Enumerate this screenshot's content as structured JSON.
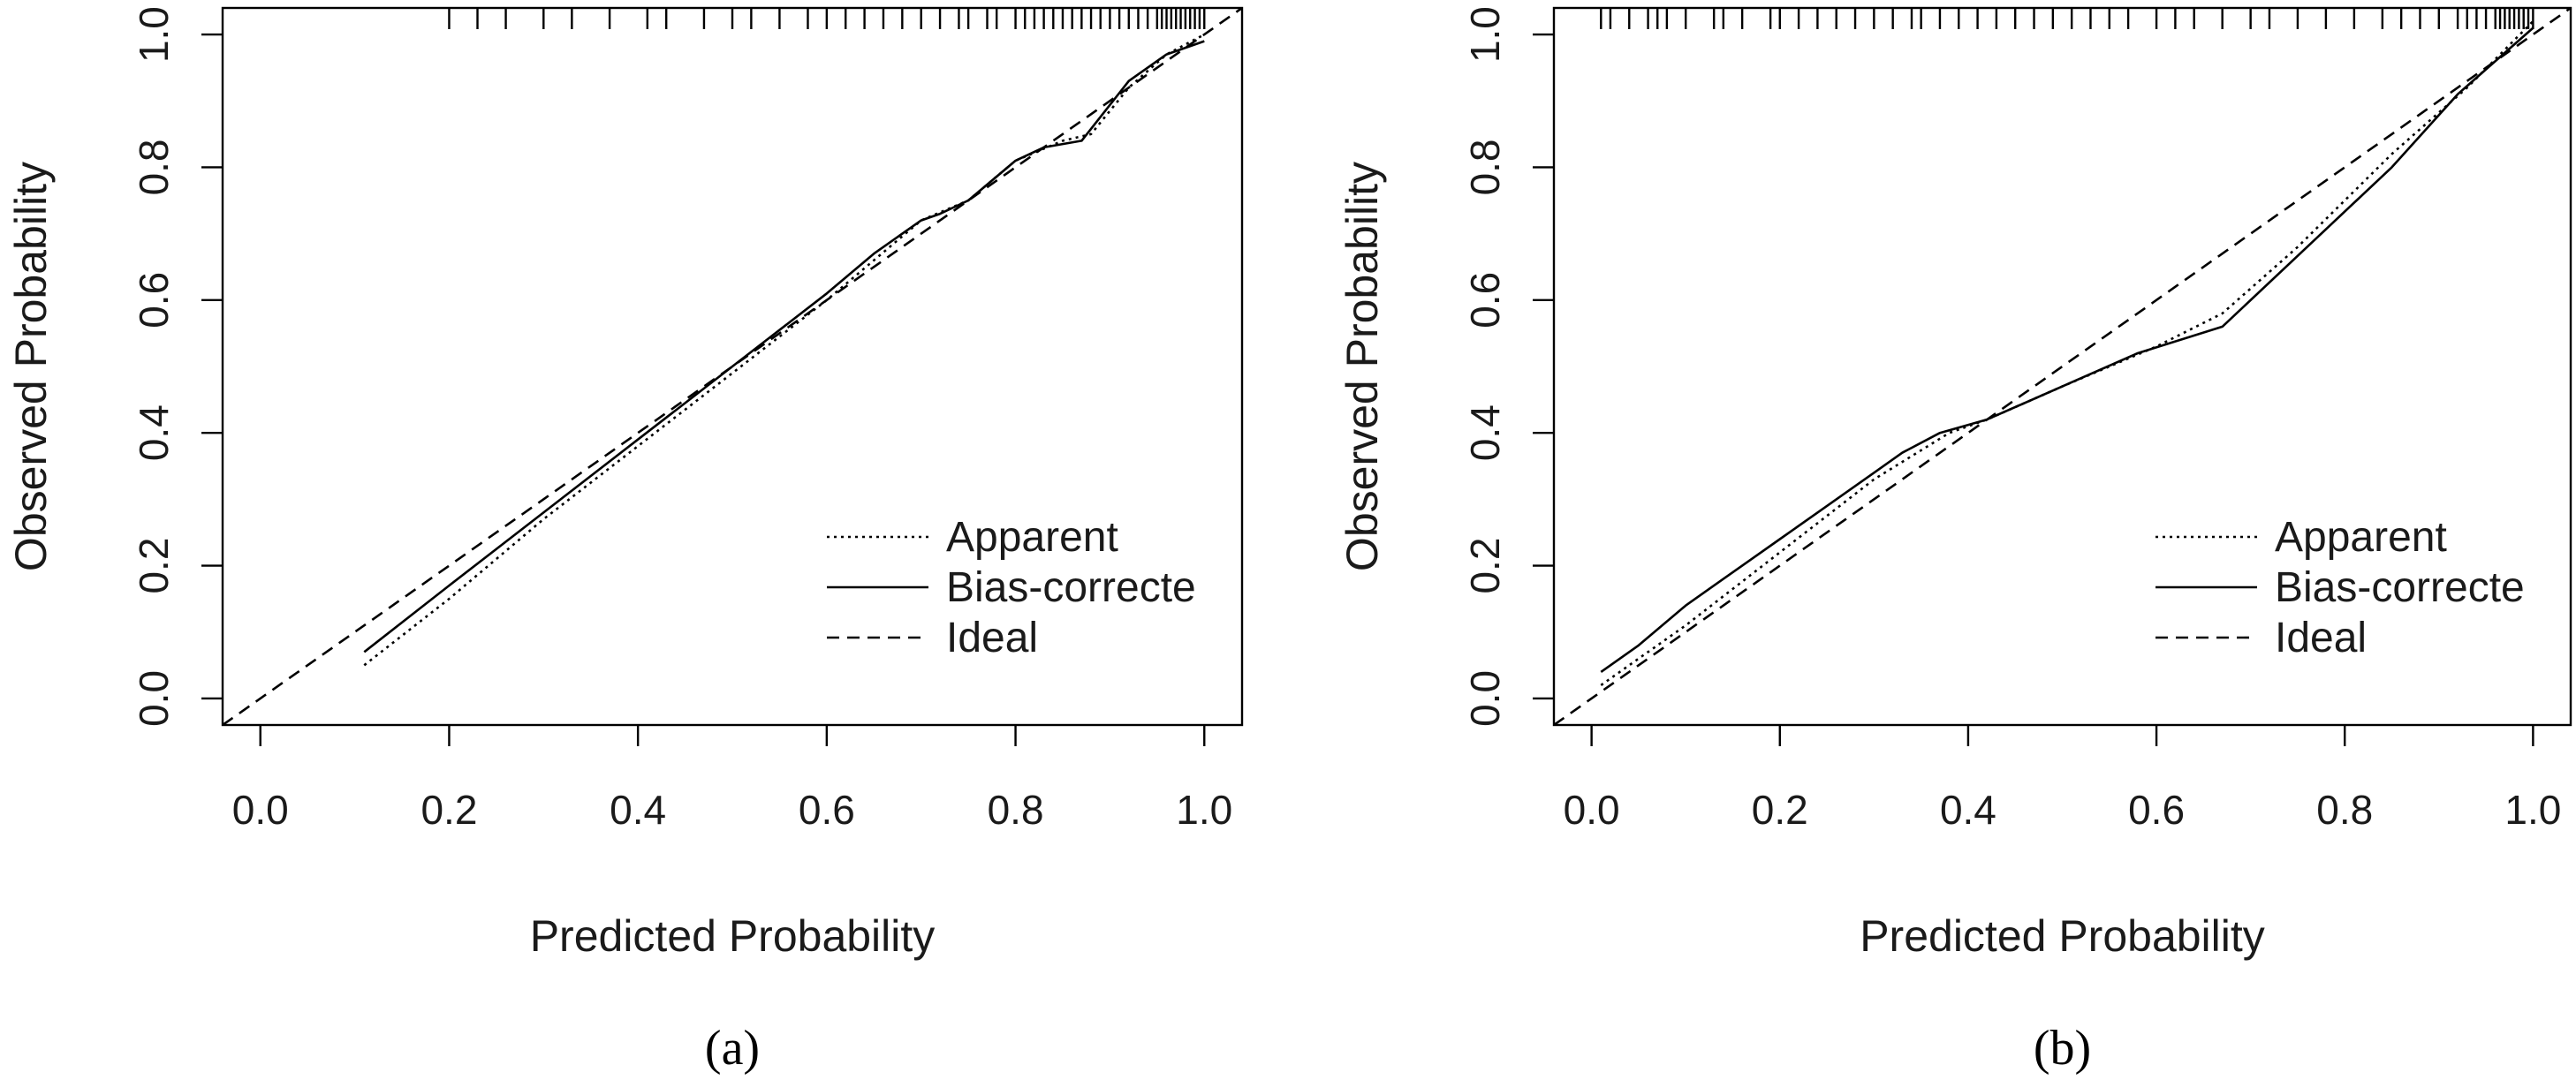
{
  "chart_data": [
    {
      "type": "line",
      "panel_label": "(a)",
      "xlabel": "Predicted Probability",
      "ylabel": "Observed Probability",
      "xlim": [
        -0.04,
        1.04
      ],
      "ylim": [
        -0.04,
        1.04
      ],
      "x_ticks": [
        0.0,
        0.2,
        0.4,
        0.6,
        0.8,
        1.0
      ],
      "x_tick_labels": [
        "0.0",
        "0.2",
        "0.4",
        "0.6",
        "0.8",
        "1.0"
      ],
      "y_ticks": [
        0.0,
        0.2,
        0.4,
        0.6,
        0.8,
        1.0
      ],
      "y_tick_labels": [
        "0.0",
        "0.2",
        "0.4",
        "0.6",
        "0.8",
        "1.0"
      ],
      "grid": false,
      "legend_position": "bottom-right",
      "series": [
        {
          "name": "Apparent",
          "line_style": "dotted",
          "x": [
            0.11,
            0.2,
            0.3,
            0.4,
            0.5,
            0.6,
            0.65,
            0.7,
            0.75,
            0.8,
            0.85,
            0.88,
            0.92,
            0.96,
            1.0
          ],
          "y": [
            0.05,
            0.15,
            0.27,
            0.38,
            0.49,
            0.6,
            0.66,
            0.72,
            0.75,
            0.81,
            0.84,
            0.85,
            0.92,
            0.97,
            1.0
          ]
        },
        {
          "name": "Bias-correcte",
          "line_style": "solid",
          "x": [
            0.11,
            0.2,
            0.3,
            0.4,
            0.5,
            0.6,
            0.65,
            0.7,
            0.72,
            0.75,
            0.8,
            0.83,
            0.87,
            0.92,
            0.96,
            1.0
          ],
          "y": [
            0.07,
            0.17,
            0.28,
            0.39,
            0.5,
            0.61,
            0.67,
            0.72,
            0.73,
            0.75,
            0.81,
            0.83,
            0.84,
            0.93,
            0.97,
            0.99
          ]
        },
        {
          "name": "Ideal",
          "line_style": "dashed",
          "x": [
            -0.04,
            1.04
          ],
          "y": [
            -0.04,
            1.04
          ]
        }
      ],
      "rug_x": [
        0.2,
        0.23,
        0.26,
        0.3,
        0.33,
        0.37,
        0.41,
        0.43,
        0.47,
        0.5,
        0.52,
        0.55,
        0.58,
        0.6,
        0.62,
        0.64,
        0.66,
        0.68,
        0.7,
        0.72,
        0.74,
        0.75,
        0.77,
        0.78,
        0.8,
        0.81,
        0.82,
        0.83,
        0.84,
        0.85,
        0.86,
        0.87,
        0.88,
        0.89,
        0.9,
        0.91,
        0.92,
        0.93,
        0.94,
        0.95,
        0.955,
        0.96,
        0.965,
        0.97,
        0.975,
        0.98,
        0.985,
        0.99,
        0.995,
        1.0
      ]
    },
    {
      "type": "line",
      "panel_label": "(b)",
      "xlabel": "Predicted Probability",
      "ylabel": "Observed Probability",
      "xlim": [
        -0.04,
        1.04
      ],
      "ylim": [
        -0.04,
        1.04
      ],
      "x_ticks": [
        0.0,
        0.2,
        0.4,
        0.6,
        0.8,
        1.0
      ],
      "x_tick_labels": [
        "0.0",
        "0.2",
        "0.4",
        "0.6",
        "0.8",
        "1.0"
      ],
      "y_ticks": [
        0.0,
        0.2,
        0.4,
        0.6,
        0.8,
        1.0
      ],
      "y_tick_labels": [
        "0.0",
        "0.2",
        "0.4",
        "0.6",
        "0.8",
        "1.0"
      ],
      "grid": false,
      "legend_position": "bottom-right",
      "series": [
        {
          "name": "Apparent",
          "line_style": "dotted",
          "x": [
            0.01,
            0.1,
            0.2,
            0.3,
            0.38,
            0.42,
            0.5,
            0.6,
            0.67,
            0.75,
            0.85,
            0.93,
            1.0
          ],
          "y": [
            0.02,
            0.11,
            0.22,
            0.33,
            0.4,
            0.42,
            0.47,
            0.53,
            0.58,
            0.68,
            0.82,
            0.92,
            1.02
          ]
        },
        {
          "name": "Bias-correcte",
          "line_style": "solid",
          "x": [
            0.01,
            0.05,
            0.1,
            0.14,
            0.2,
            0.25,
            0.3,
            0.33,
            0.37,
            0.42,
            0.5,
            0.58,
            0.67,
            0.76,
            0.85,
            0.92,
            1.0
          ],
          "y": [
            0.04,
            0.08,
            0.14,
            0.18,
            0.24,
            0.29,
            0.34,
            0.37,
            0.4,
            0.42,
            0.47,
            0.52,
            0.56,
            0.68,
            0.8,
            0.91,
            1.01
          ]
        },
        {
          "name": "Ideal",
          "line_style": "dashed",
          "x": [
            -0.04,
            1.04
          ],
          "y": [
            -0.04,
            1.04
          ]
        }
      ],
      "rug_x": [
        0.01,
        0.02,
        0.04,
        0.06,
        0.07,
        0.08,
        0.1,
        0.13,
        0.14,
        0.16,
        0.19,
        0.2,
        0.22,
        0.24,
        0.26,
        0.28,
        0.3,
        0.32,
        0.34,
        0.35,
        0.37,
        0.39,
        0.41,
        0.43,
        0.45,
        0.47,
        0.49,
        0.51,
        0.53,
        0.55,
        0.57,
        0.6,
        0.62,
        0.64,
        0.67,
        0.7,
        0.72,
        0.75,
        0.78,
        0.81,
        0.84,
        0.86,
        0.88,
        0.9,
        0.92,
        0.93,
        0.94,
        0.95,
        0.96,
        0.965,
        0.97,
        0.975,
        0.98,
        0.985,
        0.99,
        0.995,
        1.0
      ]
    }
  ]
}
